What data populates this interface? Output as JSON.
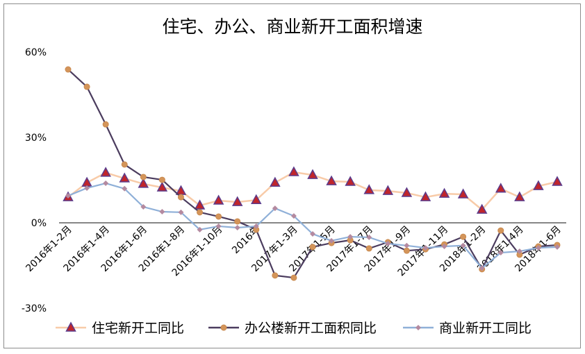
{
  "chart_data": {
    "type": "line",
    "title": "住宅、办公、商业新开工面积增速",
    "tick_labels": [
      "2016年1-2月",
      "2016年1-4月",
      "2016年1-6月",
      "2016年1-8月",
      "2016年1-10月",
      "2016年",
      "2017年1-3月",
      "2017年1-5月",
      "2017年1-7月",
      "2017年1-9月",
      "2017年1-11月",
      "2018年1-2月",
      "2018年1-4月",
      "2018年1-6月"
    ],
    "y_ticks": [
      "60%",
      "30%",
      "0%",
      "-30%"
    ],
    "y_tick_values": [
      60,
      30,
      0,
      -30
    ],
    "ylim": [
      -30,
      60
    ],
    "grid": false,
    "legend_position": "bottom",
    "series": [
      {
        "name": "住宅新开工同比",
        "line_color": "#f8cba8",
        "marker": "triangle",
        "marker_color": "#c0252b",
        "marker_edge": "#5b3c8c",
        "values": [
          9.0,
          14.1,
          17.6,
          15.6,
          13.7,
          12.4,
          11.2,
          6.1,
          7.8,
          7.3,
          8.0,
          14.1,
          17.8,
          16.8,
          14.6,
          14.4,
          11.5,
          11.2,
          10.5,
          9.0,
          10.2,
          10.0,
          4.6,
          12.0,
          9.0,
          12.9,
          14.4
        ]
      },
      {
        "name": "办公楼新开工面积同比",
        "line_color": "#4b3c5e",
        "marker": "circle",
        "marker_color": "#d4955a",
        "marker_edge": "#c98a50",
        "values": [
          53.9,
          47.8,
          34.6,
          20.5,
          16.1,
          15.1,
          9.0,
          3.7,
          2.2,
          0.5,
          -2.4,
          -18.5,
          -19.3,
          -8.5,
          -7.1,
          -6.1,
          -9.0,
          -6.8,
          -9.8,
          -9.3,
          -7.6,
          -4.9,
          -16.3,
          -2.7,
          -11.2,
          -8.3,
          -7.8
        ]
      },
      {
        "name": "商业新开工同比",
        "line_color": "#8fb0d8",
        "marker": "diamond",
        "marker_color": "#b48aa0",
        "marker_edge": "#b48aa0",
        "values": [
          9.5,
          12.2,
          13.9,
          12.0,
          5.6,
          3.9,
          3.7,
          -2.4,
          -1.2,
          -1.7,
          -1.2,
          5.1,
          2.4,
          -3.9,
          -6.3,
          -4.9,
          -5.1,
          -7.3,
          -8.0,
          -8.8,
          -8.3,
          -8.0,
          -15.9,
          -10.5,
          -10.0,
          -8.8,
          -8.5
        ]
      }
    ]
  }
}
